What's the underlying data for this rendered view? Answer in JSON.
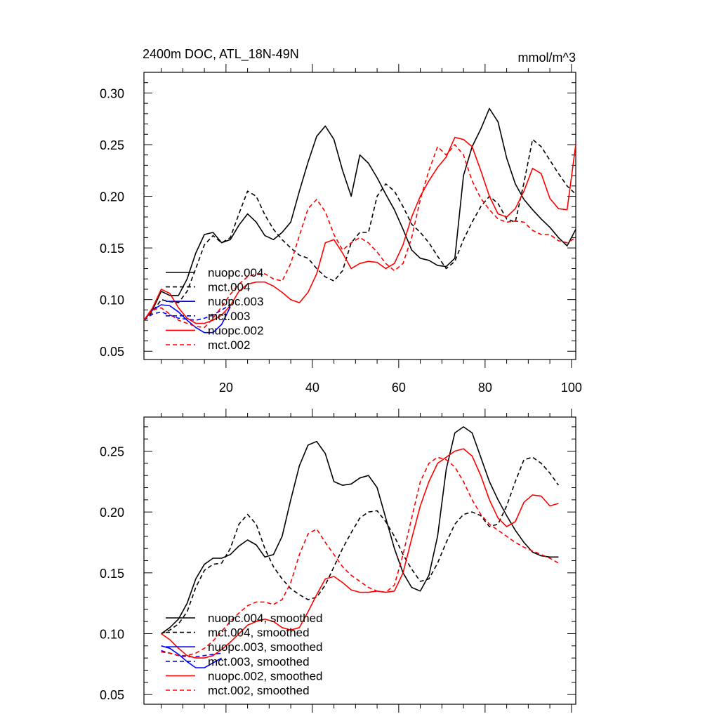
{
  "chart_data": [
    {
      "type": "line",
      "title": "2400m DOC, ATL_18N-49N",
      "units": "mmol/m^3",
      "xlabel": "",
      "ylabel": "",
      "xlim": [
        1,
        101
      ],
      "ylim": [
        0.042,
        0.32
      ],
      "xticks": [
        20,
        40,
        60,
        80,
        100
      ],
      "xtick_labels": [
        "20",
        "40",
        "60",
        "80",
        "100"
      ],
      "yticks": [
        0.05,
        0.1,
        0.15,
        0.2,
        0.25,
        0.3
      ],
      "ytick_labels": [
        "0.05",
        "0.10",
        "0.15",
        "0.20",
        "0.25",
        "0.30"
      ],
      "legend_position": "lower-left",
      "series": [
        {
          "name": "nuopc.004",
          "color": "#000000",
          "dash": "solid",
          "x": [
            1,
            3,
            5,
            7,
            9,
            11,
            13,
            15,
            17,
            19,
            21,
            23,
            25,
            27,
            29,
            31,
            33,
            35,
            37,
            39,
            41,
            43,
            45,
            47,
            49,
            51,
            53,
            55,
            57,
            59,
            61,
            63,
            65,
            67,
            69,
            71,
            73,
            75,
            77,
            79,
            81,
            83,
            85,
            87,
            89,
            91,
            93,
            95,
            97,
            99,
            101
          ],
          "y": [
            0.08,
            0.09,
            0.108,
            0.104,
            0.104,
            0.12,
            0.145,
            0.163,
            0.165,
            0.155,
            0.158,
            0.172,
            0.183,
            0.175,
            0.162,
            0.158,
            0.165,
            0.175,
            0.205,
            0.233,
            0.258,
            0.268,
            0.255,
            0.225,
            0.2,
            0.24,
            0.232,
            0.218,
            0.202,
            0.187,
            0.168,
            0.148,
            0.14,
            0.138,
            0.133,
            0.132,
            0.14,
            0.22,
            0.248,
            0.265,
            0.285,
            0.272,
            0.237,
            0.212,
            0.197,
            0.187,
            0.178,
            0.17,
            0.16,
            0.152,
            0.168
          ]
        },
        {
          "name": "mct.004",
          "color": "#000000",
          "dash": "dashed",
          "x": [
            1,
            3,
            5,
            7,
            9,
            11,
            13,
            15,
            17,
            19,
            21,
            23,
            25,
            27,
            29,
            31,
            33,
            35,
            37,
            39,
            41,
            43,
            45,
            47,
            49,
            51,
            53,
            55,
            57,
            59,
            61,
            63,
            65,
            67,
            69,
            71,
            73,
            75,
            77,
            79,
            81,
            83,
            85,
            87,
            89,
            91,
            93,
            95,
            97,
            99,
            101
          ],
          "y": [
            0.08,
            0.088,
            0.1,
            0.098,
            0.097,
            0.108,
            0.13,
            0.153,
            0.162,
            0.155,
            0.16,
            0.183,
            0.205,
            0.2,
            0.182,
            0.168,
            0.158,
            0.15,
            0.143,
            0.14,
            0.13,
            0.122,
            0.118,
            0.128,
            0.155,
            0.165,
            0.165,
            0.2,
            0.212,
            0.205,
            0.19,
            0.173,
            0.165,
            0.155,
            0.142,
            0.13,
            0.137,
            0.158,
            0.175,
            0.19,
            0.2,
            0.193,
            0.178,
            0.175,
            0.213,
            0.255,
            0.248,
            0.235,
            0.222,
            0.21,
            0.202
          ]
        },
        {
          "name": "nuopc.003",
          "color": "#0000ff",
          "dash": "solid",
          "x": [
            1,
            3,
            5,
            7,
            9,
            11,
            13,
            15,
            17,
            19,
            21
          ],
          "y": [
            0.08,
            0.09,
            0.095,
            0.094,
            0.088,
            0.08,
            0.073,
            0.068,
            0.068,
            0.076,
            0.093
          ]
        },
        {
          "name": "mct.003",
          "color": "#0000ff",
          "dash": "dashed",
          "x": [
            1,
            3,
            5,
            7,
            9,
            11,
            13,
            15,
            17,
            19,
            21
          ],
          "y": [
            0.08,
            0.086,
            0.088,
            0.085,
            0.082,
            0.081,
            0.08,
            0.082,
            0.085,
            0.09,
            0.095
          ]
        },
        {
          "name": "nuopc.002",
          "color": "#ff0000",
          "dash": "solid",
          "x": [
            1,
            3,
            5,
            7,
            9,
            11,
            13,
            15,
            17,
            19,
            21,
            23,
            25,
            27,
            29,
            31,
            33,
            35,
            37,
            39,
            41,
            43,
            45,
            47,
            49,
            51,
            53,
            55,
            57,
            59,
            61,
            63,
            65,
            67,
            69,
            71,
            73,
            75,
            77,
            79,
            81,
            83,
            85,
            87,
            89,
            91,
            93,
            95,
            97,
            99,
            101
          ],
          "y": [
            0.08,
            0.092,
            0.11,
            0.106,
            0.092,
            0.082,
            0.077,
            0.077,
            0.08,
            0.085,
            0.094,
            0.108,
            0.115,
            0.117,
            0.117,
            0.113,
            0.107,
            0.1,
            0.097,
            0.107,
            0.125,
            0.155,
            0.158,
            0.145,
            0.13,
            0.135,
            0.137,
            0.136,
            0.13,
            0.135,
            0.153,
            0.18,
            0.2,
            0.215,
            0.228,
            0.238,
            0.257,
            0.255,
            0.248,
            0.225,
            0.2,
            0.183,
            0.18,
            0.188,
            0.205,
            0.227,
            0.222,
            0.198,
            0.188,
            0.187,
            0.25
          ]
        },
        {
          "name": "mct.002",
          "color": "#ff0000",
          "dash": "dashed",
          "x": [
            1,
            3,
            5,
            7,
            9,
            11,
            13,
            15,
            17,
            19,
            21,
            23,
            25,
            27,
            29,
            31,
            33,
            35,
            37,
            39,
            41,
            43,
            45,
            47,
            49,
            51,
            53,
            55,
            57,
            59,
            61,
            63,
            65,
            67,
            69,
            71,
            73,
            75,
            77,
            79,
            81,
            83,
            85,
            87,
            89,
            91,
            93,
            95,
            97,
            99,
            101
          ],
          "y": [
            0.08,
            0.09,
            0.092,
            0.086,
            0.08,
            0.077,
            0.074,
            0.073,
            0.082,
            0.093,
            0.105,
            0.115,
            0.122,
            0.125,
            0.125,
            0.12,
            0.118,
            0.135,
            0.162,
            0.188,
            0.197,
            0.185,
            0.163,
            0.148,
            0.155,
            0.16,
            0.155,
            0.146,
            0.135,
            0.128,
            0.135,
            0.16,
            0.197,
            0.225,
            0.248,
            0.24,
            0.25,
            0.24,
            0.215,
            0.198,
            0.187,
            0.178,
            0.175,
            0.176,
            0.175,
            0.167,
            0.163,
            0.163,
            0.157,
            0.155,
            0.16
          ]
        }
      ]
    },
    {
      "type": "line",
      "title": "",
      "xlabel": "",
      "ylabel": "",
      "xlim": [
        1,
        101
      ],
      "ylim": [
        0.042,
        0.278
      ],
      "xticks": [
        20,
        40,
        60,
        80,
        100
      ],
      "xtick_labels": [],
      "yticks": [
        0.05,
        0.1,
        0.15,
        0.2,
        0.25
      ],
      "ytick_labels": [
        "0.05",
        "0.10",
        "0.15",
        "0.20",
        "0.25"
      ],
      "legend_position": "lower-left",
      "series": [
        {
          "name": "nuopc.004, smoothed",
          "color": "#000000",
          "dash": "solid",
          "x": [
            5,
            7,
            9,
            11,
            13,
            15,
            17,
            19,
            21,
            23,
            25,
            27,
            29,
            31,
            33,
            35,
            37,
            39,
            41,
            43,
            45,
            47,
            49,
            51,
            53,
            55,
            57,
            59,
            61,
            63,
            65,
            67,
            69,
            71,
            73,
            75,
            77,
            79,
            81,
            83,
            85,
            87,
            89,
            91,
            93,
            95,
            97
          ],
          "y": [
            0.1,
            0.105,
            0.112,
            0.125,
            0.145,
            0.157,
            0.162,
            0.162,
            0.165,
            0.172,
            0.177,
            0.173,
            0.163,
            0.165,
            0.18,
            0.21,
            0.238,
            0.255,
            0.258,
            0.248,
            0.225,
            0.222,
            0.223,
            0.228,
            0.23,
            0.22,
            0.195,
            0.17,
            0.15,
            0.138,
            0.135,
            0.148,
            0.18,
            0.235,
            0.265,
            0.27,
            0.265,
            0.245,
            0.225,
            0.21,
            0.197,
            0.185,
            0.175,
            0.167,
            0.164,
            0.163,
            0.163
          ]
        },
        {
          "name": "mct.004, smoothed",
          "color": "#000000",
          "dash": "dashed",
          "x": [
            5,
            7,
            9,
            11,
            13,
            15,
            17,
            19,
            21,
            23,
            25,
            27,
            29,
            31,
            33,
            35,
            37,
            39,
            41,
            43,
            45,
            47,
            49,
            51,
            53,
            55,
            57,
            59,
            61,
            63,
            65,
            67,
            69,
            71,
            73,
            75,
            77,
            79,
            81,
            83,
            85,
            87,
            89,
            91,
            93,
            95,
            97
          ],
          "y": [
            0.1,
            0.103,
            0.108,
            0.118,
            0.138,
            0.152,
            0.157,
            0.158,
            0.17,
            0.19,
            0.198,
            0.19,
            0.17,
            0.155,
            0.145,
            0.137,
            0.132,
            0.128,
            0.13,
            0.14,
            0.155,
            0.17,
            0.183,
            0.195,
            0.2,
            0.201,
            0.192,
            0.18,
            0.165,
            0.153,
            0.143,
            0.145,
            0.158,
            0.175,
            0.19,
            0.198,
            0.2,
            0.197,
            0.188,
            0.19,
            0.205,
            0.225,
            0.243,
            0.245,
            0.24,
            0.232,
            0.222
          ]
        },
        {
          "name": "nuopc.003, smoothed",
          "color": "#0000ff",
          "dash": "solid",
          "x": [
            5,
            7,
            9,
            11,
            13,
            15,
            17,
            19
          ],
          "y": [
            0.09,
            0.088,
            0.083,
            0.077,
            0.072,
            0.072,
            0.076,
            0.08
          ]
        },
        {
          "name": "mct.003, smoothed",
          "color": "#0000ff",
          "dash": "dashed",
          "x": [
            5,
            7,
            9,
            11,
            13,
            15,
            17,
            19
          ],
          "y": [
            0.086,
            0.084,
            0.082,
            0.081,
            0.081,
            0.082,
            0.083,
            0.084
          ]
        },
        {
          "name": "nuopc.002, smoothed",
          "color": "#ff0000",
          "dash": "solid",
          "x": [
            5,
            7,
            9,
            11,
            13,
            15,
            17,
            19,
            21,
            23,
            25,
            27,
            29,
            31,
            33,
            35,
            37,
            39,
            41,
            43,
            45,
            47,
            49,
            51,
            53,
            55,
            57,
            59,
            61,
            63,
            65,
            67,
            69,
            71,
            73,
            75,
            77,
            79,
            81,
            83,
            85,
            87,
            89,
            91,
            93,
            95,
            97
          ],
          "y": [
            0.1,
            0.095,
            0.088,
            0.082,
            0.08,
            0.08,
            0.082,
            0.087,
            0.093,
            0.1,
            0.107,
            0.11,
            0.112,
            0.11,
            0.105,
            0.103,
            0.105,
            0.118,
            0.132,
            0.145,
            0.147,
            0.142,
            0.136,
            0.134,
            0.134,
            0.135,
            0.134,
            0.135,
            0.15,
            0.178,
            0.205,
            0.225,
            0.24,
            0.245,
            0.25,
            0.252,
            0.246,
            0.23,
            0.21,
            0.195,
            0.188,
            0.192,
            0.208,
            0.214,
            0.213,
            0.205,
            0.207
          ]
        },
        {
          "name": "mct.002, smoothed",
          "color": "#ff0000",
          "dash": "dashed",
          "x": [
            5,
            7,
            9,
            11,
            13,
            15,
            17,
            19,
            21,
            23,
            25,
            27,
            29,
            31,
            33,
            35,
            37,
            39,
            41,
            43,
            45,
            47,
            49,
            51,
            53,
            55,
            57,
            59,
            61,
            63,
            65,
            67,
            69,
            71,
            73,
            75,
            77,
            79,
            81,
            83,
            85,
            87,
            89,
            91,
            93,
            95,
            97
          ],
          "y": [
            0.085,
            0.084,
            0.082,
            0.082,
            0.084,
            0.088,
            0.094,
            0.102,
            0.11,
            0.117,
            0.123,
            0.126,
            0.126,
            0.124,
            0.128,
            0.142,
            0.165,
            0.182,
            0.186,
            0.175,
            0.165,
            0.155,
            0.148,
            0.143,
            0.138,
            0.135,
            0.134,
            0.14,
            0.165,
            0.195,
            0.225,
            0.24,
            0.245,
            0.243,
            0.237,
            0.225,
            0.21,
            0.198,
            0.19,
            0.185,
            0.18,
            0.175,
            0.171,
            0.168,
            0.165,
            0.162,
            0.158
          ]
        }
      ]
    }
  ]
}
